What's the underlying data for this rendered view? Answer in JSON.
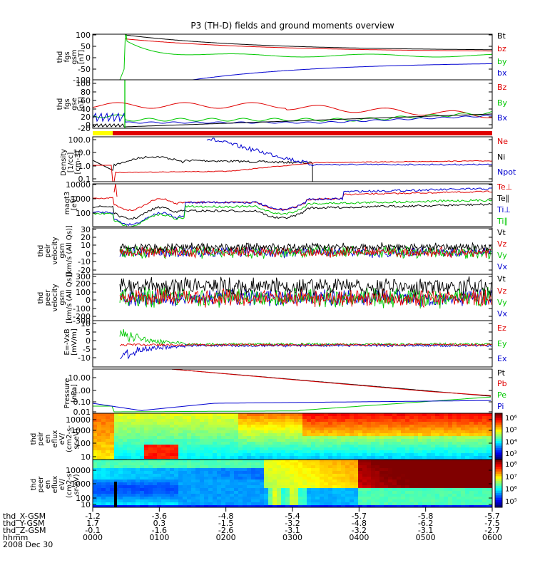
{
  "title": "P3 (TH-D) fields and ground moments overview",
  "colors": {
    "black": "#000000",
    "red": "#e00000",
    "green": "#00c800",
    "blue": "#0000d0",
    "yellow": "#ffff00",
    "magenta": "#ff00ff"
  },
  "chart_data": [
    {
      "type": "line",
      "name": "fgs_gsm",
      "ylabel": [
        "thd",
        "fgs",
        "gsm",
        "[nT]"
      ],
      "yticks": [
        "100",
        "50",
        "0",
        "-50",
        "-100"
      ],
      "legend": [
        {
          "name": "Bt",
          "color": "black"
        },
        {
          "name": "bz",
          "color": "red"
        },
        {
          "name": "by",
          "color": "green"
        },
        {
          "name": "bx",
          "color": "blue"
        }
      ]
    },
    {
      "type": "line",
      "name": "fgs_gse",
      "ylabel": [
        "thd",
        "fgs",
        "gse",
        "[nT]"
      ],
      "yticks": [
        "100",
        "80",
        "60",
        "40",
        "20",
        "0",
        "-20"
      ],
      "legend": [
        {
          "name": "Bz",
          "color": "red"
        },
        {
          "name": "By",
          "color": "green"
        },
        {
          "name": "Bx",
          "color": "blue"
        }
      ]
    },
    {
      "type": "line",
      "name": "density",
      "ylabel": [
        "Density",
        "[1/cc]",
        "[cm-3]"
      ],
      "yticks": [
        "100.0",
        "10.0",
        "1.0",
        "0.1"
      ],
      "legend": [
        {
          "name": "Ne",
          "color": "red"
        },
        {
          "name": "Ni",
          "color": "black"
        },
        {
          "name": "Npot",
          "color": "blue"
        }
      ]
    },
    {
      "type": "line",
      "name": "temperature",
      "ylabel": [
        "magt3",
        "[eV]"
      ],
      "yticks": [
        "10000",
        "1000",
        "100"
      ],
      "legend": [
        {
          "name": "Te⊥",
          "color": "red"
        },
        {
          "name": "Te∥",
          "color": "black"
        },
        {
          "name": "Ti⊥",
          "color": "blue"
        },
        {
          "name": "Ti∥",
          "color": "green"
        }
      ]
    },
    {
      "type": "line",
      "name": "peir_velocity",
      "ylabel": [
        "thd",
        "peir",
        "velocity",
        "gsm",
        "[km/s (All Qs)]"
      ],
      "yticks": [
        "30",
        "20",
        "10",
        "0",
        "-10",
        "-20"
      ],
      "legend": [
        {
          "name": "Vt",
          "color": "black"
        },
        {
          "name": "Vz",
          "color": "red"
        },
        {
          "name": "Vy",
          "color": "green"
        },
        {
          "name": "Vx",
          "color": "blue"
        }
      ]
    },
    {
      "type": "line",
      "name": "peer_velocity",
      "ylabel": [
        "thd",
        "peer",
        "velocity",
        "gsm",
        "[km/s (All Qs)]"
      ],
      "yticks": [
        "300",
        "200",
        "100",
        "0",
        "-100",
        "-200",
        "-300"
      ],
      "legend": [
        {
          "name": "Vt",
          "color": "black"
        },
        {
          "name": "Vz",
          "color": "red"
        },
        {
          "name": "Vy",
          "color": "green"
        },
        {
          "name": "Vx",
          "color": "blue"
        }
      ]
    },
    {
      "type": "line",
      "name": "efield",
      "ylabel": [
        "E=-VxB",
        "[mV/m]"
      ],
      "yticks": [
        "10",
        "5",
        "0",
        "-5",
        "-10"
      ],
      "legend": [
        {
          "name": "Ez",
          "color": "red"
        },
        {
          "name": "Ey",
          "color": "green"
        },
        {
          "name": "Ex",
          "color": "blue"
        }
      ]
    },
    {
      "type": "line",
      "name": "pressure",
      "ylabel": [
        "Pressure",
        "[nPa]"
      ],
      "yticks": [
        "10.00",
        "1.00",
        "0.10",
        "0.01"
      ],
      "legend": [
        {
          "name": "Pt",
          "color": "black"
        },
        {
          "name": "Pb",
          "color": "red"
        },
        {
          "name": "Pe",
          "color": "green"
        },
        {
          "name": "Pi",
          "color": "blue"
        }
      ]
    },
    {
      "type": "heatmap",
      "name": "peir_en_eflux",
      "ylabel": [
        "thd",
        "peir",
        "en",
        "eflux",
        "eV/",
        "(cm2-s-",
        "sr-eV)"
      ],
      "yticks": [
        "10000",
        "1000",
        "100",
        "10"
      ],
      "colorbar": [
        "10⁶",
        "10⁵",
        "10⁴",
        "10³"
      ]
    },
    {
      "type": "heatmap",
      "name": "peer_en_eflux",
      "ylabel": [
        "thd",
        "peer",
        "en",
        "eflux",
        "eV/",
        "(cm2-s-",
        "sr-eV)"
      ],
      "yticks": [
        "10000",
        "1000",
        "100",
        "10"
      ],
      "colorbar": [
        "10⁸",
        "10⁷",
        "10⁶",
        "10⁵"
      ]
    }
  ],
  "xaxis": {
    "row_labels": [
      "thd_X-GSM",
      "thd_Y-GSM",
      "thd_Z-GSM",
      "hhmm",
      "2008 Dec 30"
    ],
    "columns": [
      {
        "x": "-1.2",
        "y": "1.7",
        "z": "-0.1",
        "t": "0000"
      },
      {
        "x": "-3.6",
        "y": "0.3",
        "z": "-1.6",
        "t": "0100"
      },
      {
        "x": "-4.8",
        "y": "-1.5",
        "z": "-2.6",
        "t": "0200"
      },
      {
        "x": "-5.4",
        "y": "-3.2",
        "z": "-3.1",
        "t": "0300"
      },
      {
        "x": "-5.7",
        "y": "-4.8",
        "z": "-3.2",
        "t": "0400"
      },
      {
        "x": "-5.8",
        "y": "-6.2",
        "z": "-3.1",
        "t": "0500"
      },
      {
        "x": "-5.7",
        "y": "-7.5",
        "z": "-2.7",
        "t": "0600"
      }
    ]
  }
}
